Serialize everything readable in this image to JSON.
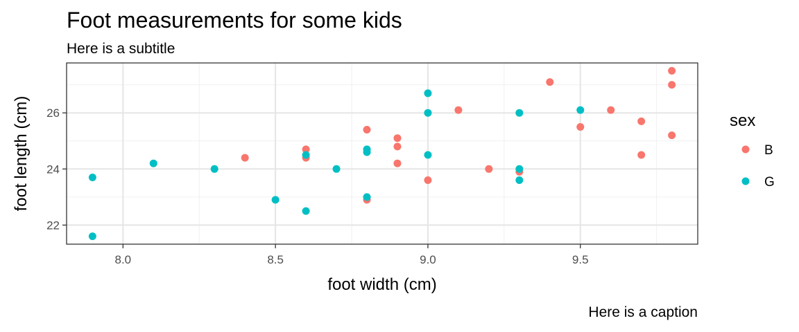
{
  "chart_data": {
    "type": "scatter",
    "title": "Foot measurements for some kids",
    "subtitle": "Here is a subtitle",
    "caption": "Here is a caption",
    "xlabel": "foot width (cm)",
    "ylabel": "foot length (cm)",
    "xlim": [
      7.815,
      9.885
    ],
    "ylim": [
      21.32,
      27.78
    ],
    "x_ticks": [
      8.0,
      8.5,
      9.0,
      9.5
    ],
    "x_tick_labels": [
      "8.0",
      "8.5",
      "9.0",
      "9.5"
    ],
    "y_ticks": [
      22,
      24,
      26
    ],
    "y_tick_labels": [
      "22",
      "24",
      "26"
    ],
    "grid": true,
    "legend": {
      "title": "sex",
      "position": "right",
      "entries": [
        {
          "label": "B",
          "color": "#F8766D"
        },
        {
          "label": "G",
          "color": "#00BFC4"
        }
      ]
    },
    "series": [
      {
        "name": "B",
        "color": "#F8766D",
        "points": [
          [
            8.4,
            24.4
          ],
          [
            8.6,
            24.7
          ],
          [
            8.6,
            24.4
          ],
          [
            8.8,
            25.4
          ],
          [
            8.8,
            22.9
          ],
          [
            8.9,
            25.1
          ],
          [
            8.9,
            24.8
          ],
          [
            8.9,
            24.2
          ],
          [
            9.0,
            23.6
          ],
          [
            9.1,
            26.1
          ],
          [
            9.2,
            24.0
          ],
          [
            9.3,
            23.9
          ],
          [
            9.4,
            27.1
          ],
          [
            9.5,
            25.5
          ],
          [
            9.6,
            26.1
          ],
          [
            9.7,
            25.7
          ],
          [
            9.7,
            24.5
          ],
          [
            9.8,
            27.5
          ],
          [
            9.8,
            27.0
          ],
          [
            9.8,
            25.2
          ]
        ]
      },
      {
        "name": "G",
        "color": "#00BFC4",
        "points": [
          [
            7.9,
            23.7
          ],
          [
            7.9,
            21.6
          ],
          [
            8.1,
            24.2
          ],
          [
            8.3,
            24.0
          ],
          [
            8.5,
            22.9
          ],
          [
            8.6,
            24.5
          ],
          [
            8.6,
            22.5
          ],
          [
            8.7,
            24.0
          ],
          [
            8.8,
            24.7
          ],
          [
            8.8,
            24.6
          ],
          [
            8.8,
            23.0
          ],
          [
            9.0,
            26.7
          ],
          [
            9.0,
            26.0
          ],
          [
            9.0,
            24.5
          ],
          [
            9.3,
            26.0
          ],
          [
            9.3,
            24.0
          ],
          [
            9.3,
            23.6
          ],
          [
            9.5,
            26.1
          ]
        ]
      }
    ]
  }
}
